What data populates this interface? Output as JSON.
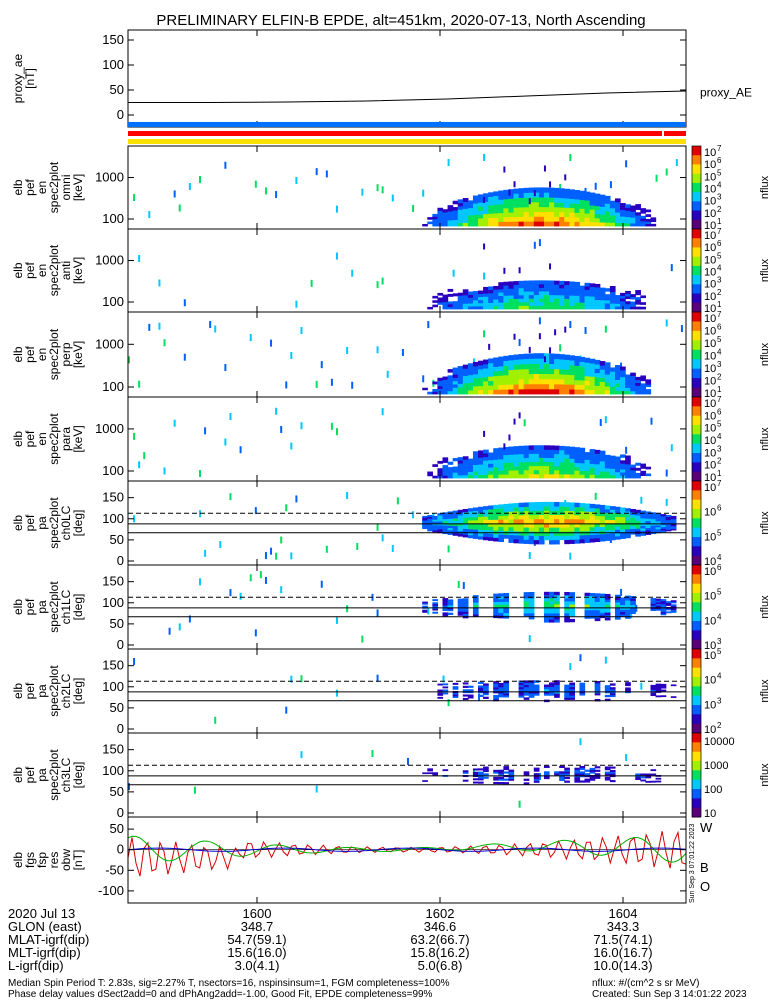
{
  "title": "PRELIMINARY ELFIN-B EPDE, alt=451km, 2020-07-13, North Ascending",
  "chart_data": {
    "type": "heatmap",
    "x_ticks": [
      "1600",
      "1602",
      "1604"
    ],
    "x_range": [
      "15:58:30",
      "16:04:50"
    ],
    "panels": [
      {
        "id": "proxy-ae",
        "ylabel": [
          "proxy_ae",
          "[nT]"
        ],
        "yticks": [
          "150",
          "100",
          "50",
          "0"
        ],
        "ylim": [
          -10,
          155
        ],
        "legend": "proxy_AE",
        "series_values": [
          25,
          25,
          26,
          28,
          32,
          38,
          44,
          48
        ]
      },
      {
        "id": "en-omni",
        "ylabel": [
          "elb",
          "pef",
          "en",
          "spec2plot",
          "omni",
          "[keV]"
        ],
        "yticks": [
          "1000",
          "100"
        ],
        "log": true,
        "cbar": [
          "10",
          "7",
          "10",
          "6",
          "10",
          "5",
          "10",
          "4",
          "10",
          "3",
          "10",
          "2",
          "10",
          "1"
        ],
        "cbar_label": "nflux",
        "intensity": 0.95,
        "band": "energy"
      },
      {
        "id": "en-anti",
        "ylabel": [
          "elb",
          "pef",
          "en",
          "spec2plot",
          "anti",
          "[keV]"
        ],
        "yticks": [
          "1000",
          "100"
        ],
        "log": true,
        "cbar": [
          "10",
          "7",
          "10",
          "6",
          "10",
          "5",
          "10",
          "4",
          "10",
          "3",
          "10",
          "2",
          "10",
          "1"
        ],
        "cbar_label": "nflux",
        "intensity": 0.55,
        "band": "energy"
      },
      {
        "id": "en-perp",
        "ylabel": [
          "elb",
          "pef",
          "en",
          "spec2plot",
          "perp",
          "[keV]"
        ],
        "yticks": [
          "1000",
          "100"
        ],
        "log": true,
        "cbar": [
          "10",
          "7",
          "10",
          "6",
          "10",
          "5",
          "10",
          "4",
          "10",
          "3",
          "10",
          "2",
          "10",
          "1"
        ],
        "cbar_label": "nflux",
        "intensity": 1.0,
        "band": "energy"
      },
      {
        "id": "en-para",
        "ylabel": [
          "elb",
          "pef",
          "en",
          "spec2plot",
          "para",
          "[keV]"
        ],
        "yticks": [
          "1000",
          "100"
        ],
        "log": true,
        "cbar": [
          "10",
          "7",
          "10",
          "6",
          "10",
          "5",
          "10",
          "4",
          "10",
          "3",
          "10",
          "2",
          "10",
          "1"
        ],
        "cbar_label": "nflux",
        "intensity": 0.7,
        "band": "energy"
      },
      {
        "id": "pa-ch0",
        "ylabel": [
          "elb",
          "pef",
          "pa",
          "spec2plot",
          "ch0LC",
          "[deg]"
        ],
        "yticks": [
          "150",
          "100",
          "50",
          "0"
        ],
        "ylim": [
          0,
          180
        ],
        "lines": [
          113,
          88,
          67
        ],
        "cbar": [
          "10",
          "7",
          "10",
          "6",
          "10",
          "5",
          "10",
          "4"
        ],
        "cbar_label": "nflux",
        "intensity": 1.0,
        "band": "pa"
      },
      {
        "id": "pa-ch1",
        "ylabel": [
          "elb",
          "pef",
          "pa",
          "spec2plot",
          "ch1LC",
          "[deg]"
        ],
        "yticks": [
          "150",
          "100",
          "50",
          "0"
        ],
        "ylim": [
          0,
          180
        ],
        "lines": [
          113,
          88,
          67
        ],
        "cbar": [
          "10",
          "6",
          "10",
          "5",
          "10",
          "4",
          "10",
          "3"
        ],
        "cbar_label": "nflux",
        "intensity": 0.6,
        "band": "pa"
      },
      {
        "id": "pa-ch2",
        "ylabel": [
          "elb",
          "pef",
          "pa",
          "spec2plot",
          "ch2LC",
          "[deg]"
        ],
        "yticks": [
          "150",
          "100",
          "50",
          "0"
        ],
        "ylim": [
          0,
          180
        ],
        "lines": [
          113,
          88,
          67
        ],
        "cbar": [
          "10",
          "5",
          "10",
          "4",
          "10",
          "3",
          "10",
          "2"
        ],
        "cbar_label": "nflux",
        "intensity": 0.3,
        "band": "pa"
      },
      {
        "id": "pa-ch3",
        "ylabel": [
          "elb",
          "pef",
          "pa",
          "spec2plot",
          "ch3LC",
          "[deg]"
        ],
        "yticks": [
          "150",
          "100",
          "50",
          "0"
        ],
        "ylim": [
          0,
          180
        ],
        "lines": [
          113,
          88,
          67
        ],
        "cbar": [
          "10000",
          "1000",
          "100",
          "10"
        ],
        "cbar_label": "nflux",
        "intensity": 0.2,
        "band": "pa"
      },
      {
        "id": "fgs",
        "ylabel": [
          "elb",
          "fgs",
          "fsp",
          "res",
          "obw",
          "[nT]"
        ],
        "yticks": [
          "50",
          "0",
          "-50",
          "-100"
        ],
        "ylim": [
          -110,
          60
        ],
        "legend": [
          "W",
          "B",
          "O"
        ]
      }
    ]
  },
  "colors": {
    "w": "#d40000",
    "b": "#00b000",
    "o": "#0000cc",
    "bar_blue": "#0070ff",
    "bar_red": "#ff0000",
    "bar_yellow": "#ffe000"
  },
  "side_stamp": "Sun Sep  3 07:01:22 2023",
  "footer": {
    "rows": [
      {
        "label": "2020 Jul 13",
        "v1": "1600",
        "v2": "1602",
        "v3": "1604"
      },
      {
        "label": "GLON (east)",
        "v1": "348.7",
        "v2": "346.6",
        "v3": "343.3"
      },
      {
        "label": "MLAT-igrf(dip)",
        "v1": "54.7(59.1)",
        "v2": "63.2(66.7)",
        "v3": "71.5(74.1)"
      },
      {
        "label": "MLT-igrf(dip)",
        "v1": "15.6(16.0)",
        "v2": "15.8(16.2)",
        "v3": "16.0(16.7)"
      },
      {
        "label": "L-igrf(dip)",
        "v1": "3.0(4.1)",
        "v2": "5.0(6.8)",
        "v3": "10.0(14.3)"
      }
    ],
    "note1": "Median Spin Period T: 2.83s, sig=2.27% T, nsectors=16, nspinsinsum=1, FGM completeness=100%",
    "note2": "Phase delay values dSect2add=0 and dPhAng2add=-1.00, Good Fit, EPDE completeness=99%",
    "nflux_units": "nflux: #/(cm^2 s sr MeV)",
    "created": "Created: Sun Sep  3 14:01:22 2023"
  }
}
